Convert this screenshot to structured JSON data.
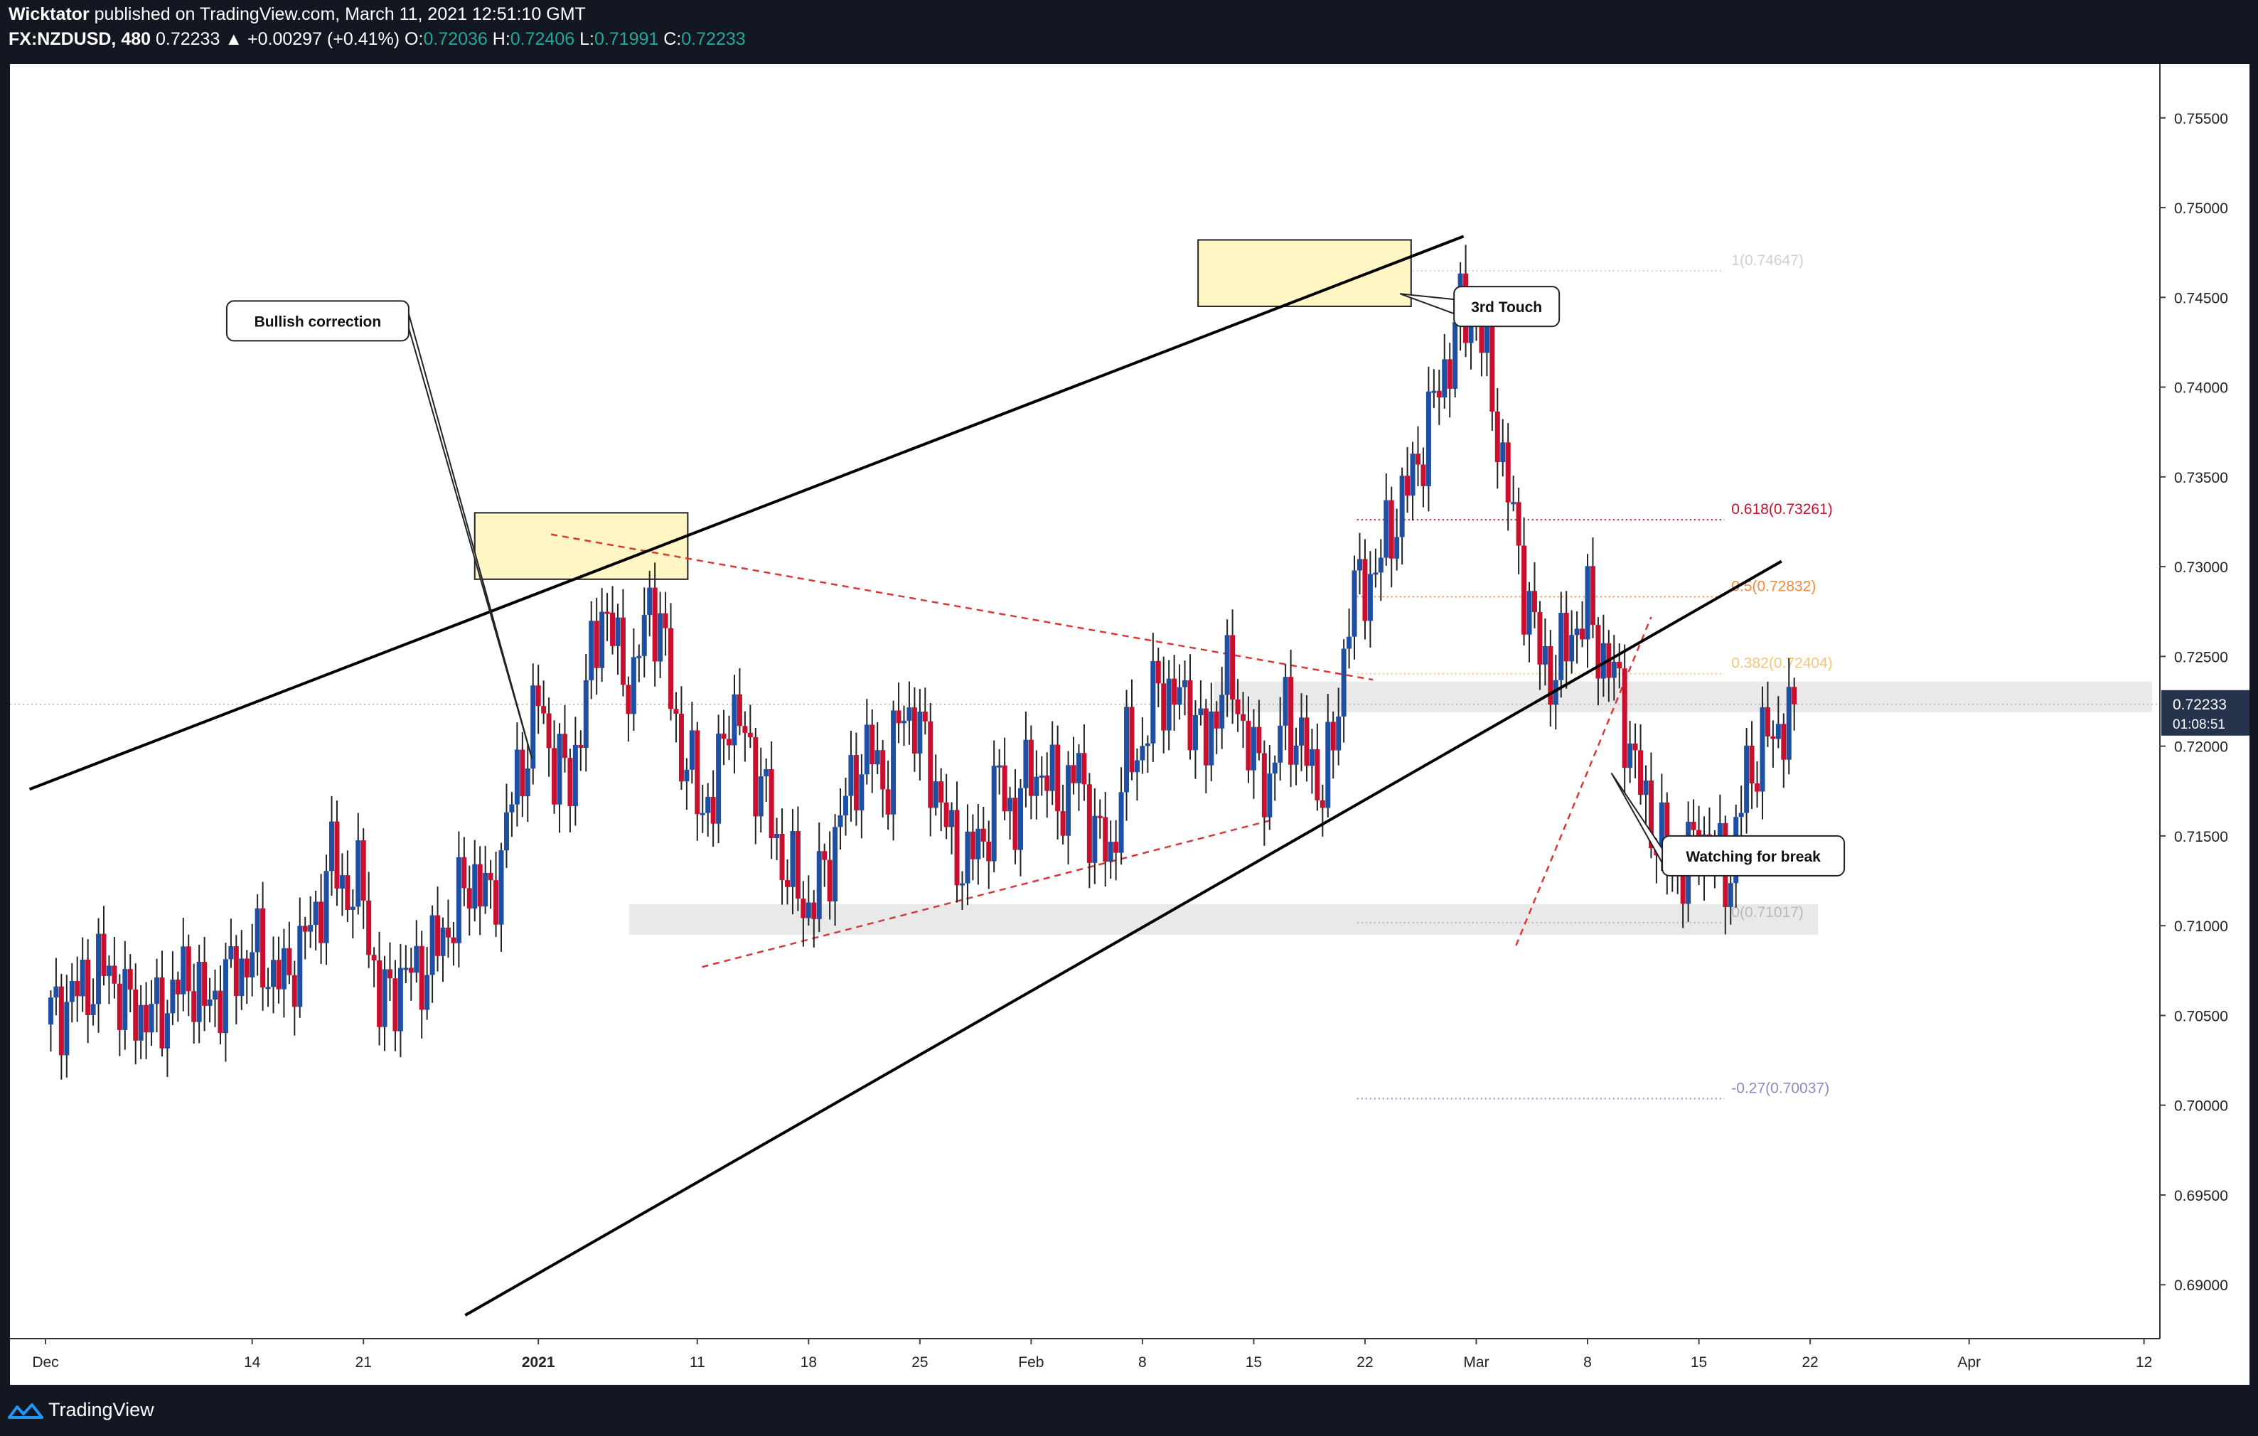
{
  "header": {
    "author": "Wicktator",
    "published_text": "published on TradingView.com, March 11, 2021 12:51:10 GMT",
    "symbol": "FX:NZDUSD, 480",
    "last": "0.72233",
    "change": "▲ +0.00297 (+0.41%)",
    "o_label": "O:",
    "o_value": "0.72036",
    "h_label": "H:",
    "h_value": "0.72406",
    "l_label": "L:",
    "l_value": "0.71991",
    "c_label": "C:",
    "c_value": "0.72233"
  },
  "footer": {
    "brand": "TradingView",
    "logo_icon": "tradingview-logo-icon"
  },
  "colors": {
    "up": "#1e4fa3",
    "down": "#c8102e",
    "background": "#ffffff",
    "frame": "#131722",
    "teal": "#26a69a",
    "trend_line": "#000000",
    "dashed": "#d93838",
    "zone": "#fff6c4",
    "range_band": "#e9e9e9"
  },
  "chart_data": {
    "type": "candlestick",
    "symbol": "NZDUSD",
    "timeframe": "480",
    "ylim": [
      0.687,
      0.758
    ],
    "y_ticks": [
      "0.75500",
      "0.75000",
      "0.74500",
      "0.74000",
      "0.73500",
      "0.73000",
      "0.72500",
      "0.72000",
      "0.71500",
      "0.71000",
      "0.70500",
      "0.70000",
      "0.69500",
      "0.69000"
    ],
    "x_ticks": [
      {
        "label": "Dec",
        "day": 0
      },
      {
        "label": "14",
        "day": 13
      },
      {
        "label": "21",
        "day": 20
      },
      {
        "label": "2021",
        "day": 31
      },
      {
        "label": "11",
        "day": 41
      },
      {
        "label": "18",
        "day": 48
      },
      {
        "label": "25",
        "day": 55
      },
      {
        "label": "Feb",
        "day": 62
      },
      {
        "label": "8",
        "day": 69
      },
      {
        "label": "15",
        "day": 76
      },
      {
        "label": "22",
        "day": 83
      },
      {
        "label": "Mar",
        "day": 90
      },
      {
        "label": "8",
        "day": 97
      },
      {
        "label": "15",
        "day": 104
      },
      {
        "label": "22",
        "day": 111
      },
      {
        "label": "Apr",
        "day": 121
      },
      {
        "label": "12",
        "day": 132
      }
    ],
    "x_axis_start": "Nov 30, 2020",
    "x_axis_span_days": 133,
    "last_price_label": "0.72233",
    "countdown_label": "01:08:51",
    "candle_path": [
      [
        0,
        0.7045
      ],
      [
        2,
        0.7063
      ],
      [
        4,
        0.7077
      ],
      [
        5,
        0.7055
      ],
      [
        7,
        0.7049
      ],
      [
        9,
        0.7074
      ],
      [
        10,
        0.7054
      ],
      [
        12,
        0.7075
      ],
      [
        13,
        0.7086
      ],
      [
        15,
        0.7068
      ],
      [
        17,
        0.7105
      ],
      [
        18,
        0.7137
      ],
      [
        19,
        0.7119
      ],
      [
        20,
        0.712
      ],
      [
        21,
        0.7053
      ],
      [
        22,
        0.7068
      ],
      [
        24,
        0.7078
      ],
      [
        25,
        0.7095
      ],
      [
        27,
        0.713
      ],
      [
        28,
        0.7109
      ],
      [
        29,
        0.7158
      ],
      [
        30,
        0.719
      ],
      [
        31,
        0.7225
      ],
      [
        32,
        0.719
      ],
      [
        33,
        0.718
      ],
      [
        34,
        0.723
      ],
      [
        35,
        0.728
      ],
      [
        36,
        0.725
      ],
      [
        37,
        0.7233
      ],
      [
        38,
        0.7285
      ],
      [
        39,
        0.725
      ],
      [
        40,
        0.7195
      ],
      [
        41,
        0.7175
      ],
      [
        42,
        0.7165
      ],
      [
        43,
        0.7225
      ],
      [
        45,
        0.718
      ],
      [
        46,
        0.7145
      ],
      [
        47,
        0.7125
      ],
      [
        48,
        0.711
      ],
      [
        49,
        0.7128
      ],
      [
        50,
        0.716
      ],
      [
        51,
        0.7188
      ],
      [
        52,
        0.7195
      ],
      [
        53,
        0.718
      ],
      [
        54,
        0.7225
      ],
      [
        55,
        0.7205
      ],
      [
        56,
        0.718
      ],
      [
        57,
        0.7143
      ],
      [
        58,
        0.7135
      ],
      [
        59,
        0.715
      ],
      [
        60,
        0.718
      ],
      [
        61,
        0.716
      ],
      [
        62,
        0.719
      ],
      [
        63,
        0.718
      ],
      [
        64,
        0.717
      ],
      [
        65,
        0.7187
      ],
      [
        66,
        0.715
      ],
      [
        67,
        0.714
      ],
      [
        68,
        0.7195
      ],
      [
        69,
        0.72
      ],
      [
        70,
        0.7235
      ],
      [
        71,
        0.7225
      ],
      [
        72,
        0.7225
      ],
      [
        73,
        0.7195
      ],
      [
        74,
        0.724
      ],
      [
        75,
        0.7225
      ],
      [
        76,
        0.719
      ],
      [
        77,
        0.718
      ],
      [
        78,
        0.722
      ],
      [
        79,
        0.72
      ],
      [
        80,
        0.718
      ],
      [
        81,
        0.7195
      ],
      [
        82,
        0.728
      ],
      [
        83,
        0.729
      ],
      [
        84,
        0.7305
      ],
      [
        85,
        0.733
      ],
      [
        86,
        0.735
      ],
      [
        87,
        0.738
      ],
      [
        88,
        0.741
      ],
      [
        89,
        0.744
      ],
      [
        90,
        0.744
      ],
      [
        91,
        0.7395
      ],
      [
        92,
        0.734
      ],
      [
        93,
        0.729
      ],
      [
        94,
        0.725
      ],
      [
        95,
        0.724
      ],
      [
        96,
        0.7265
      ],
      [
        97,
        0.7275
      ],
      [
        98,
        0.725
      ],
      [
        99,
        0.723
      ],
      [
        100,
        0.7185
      ],
      [
        101,
        0.716
      ],
      [
        102,
        0.7135
      ],
      [
        103,
        0.713
      ],
      [
        104,
        0.715
      ],
      [
        105,
        0.714
      ],
      [
        106,
        0.713
      ],
      [
        107,
        0.7185
      ],
      [
        108,
        0.72
      ],
      [
        109,
        0.721
      ],
      [
        110,
        0.7223
      ]
    ],
    "drawings": {
      "trend_lines": [
        {
          "from": {
            "day": -1.0,
            "price": 0.7176
          },
          "to": {
            "day": 89.2,
            "price": 0.7484
          }
        },
        {
          "from": {
            "day": 26.4,
            "price": 0.6883
          },
          "to": {
            "day": 109.2,
            "price": 0.7303
          }
        }
      ],
      "dashed_lines": [
        {
          "from": {
            "day": 31.8,
            "price": 0.7318
          },
          "to": {
            "day": 83.5,
            "price": 0.7237
          }
        },
        {
          "from": {
            "day": 41.3,
            "price": 0.7077
          },
          "to": {
            "day": 77.2,
            "price": 0.7159
          }
        },
        {
          "from": {
            "day": 92.5,
            "price": 0.7089
          },
          "to": {
            "day": 101.0,
            "price": 0.7272
          }
        }
      ],
      "supply_zones": [
        {
          "from_day": 27.0,
          "to_day": 40.4,
          "top": 0.733,
          "bottom": 0.7293
        },
        {
          "from_day": 72.5,
          "to_day": 85.9,
          "top": 0.7482,
          "bottom": 0.7445
        }
      ],
      "range_bands": [
        {
          "from_day": 73.5,
          "to_day": 132.5,
          "top": 0.7236,
          "bottom": 0.7219
        },
        {
          "from_day": 36.7,
          "to_day": 111.5,
          "top": 0.7112,
          "bottom": 0.7095
        }
      ],
      "fib_levels": [
        {
          "label": "1(0.74647)",
          "price": 0.74647,
          "color": "#cfcfcf"
        },
        {
          "label": "0.618(0.73261)",
          "price": 0.73261,
          "color": "#c8102e"
        },
        {
          "label": "0.5(0.72832)",
          "price": 0.72832,
          "color": "#f08a3b"
        },
        {
          "label": "0.382(0.72404)",
          "price": 0.72404,
          "color": "#f5c57a"
        },
        {
          "label": "0(0.71017)",
          "price": 0.71017,
          "color": "#b8b8b8"
        },
        {
          "label": "-0.27(0.70037)",
          "price": 0.70037,
          "color": "#8a8ac8"
        }
      ],
      "fib_from_day": 82.5,
      "fib_to_day": 105.6,
      "callouts": [
        {
          "text": "Bullish correction",
          "box_day": 11.4,
          "box_price": 0.7448,
          "pointer_day": 30.6,
          "pointer_price": 0.7193
        },
        {
          "text": "3rd Touch",
          "box_day": 88.6,
          "box_price": 0.7456,
          "pointer_day": 85.2,
          "pointer_price": 0.7452
        },
        {
          "text": "Watching for break",
          "box_day": 101.7,
          "box_price": 0.715,
          "pointer_day": 98.5,
          "pointer_price": 0.7185
        }
      ]
    }
  }
}
